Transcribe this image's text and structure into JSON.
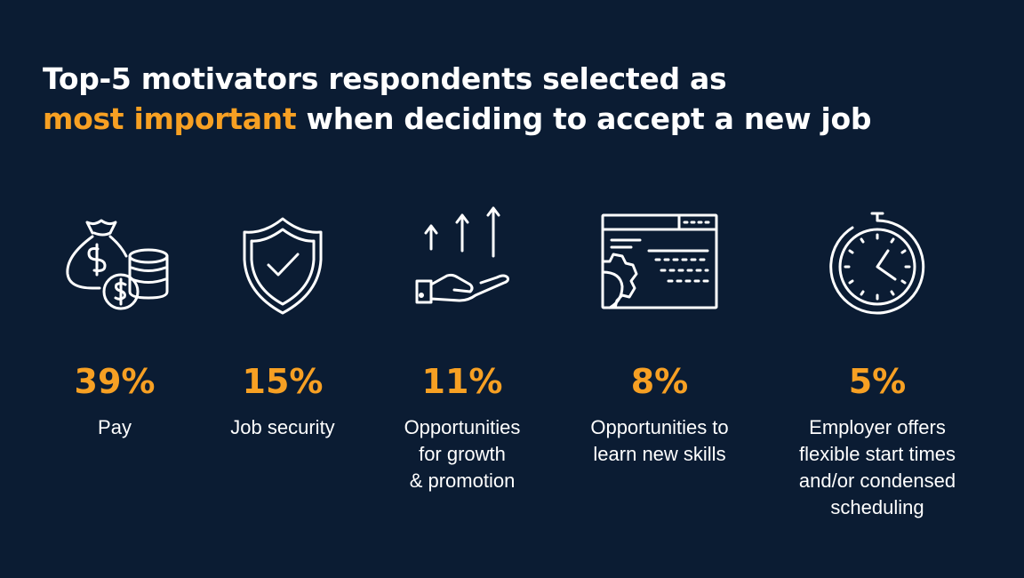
{
  "title": {
    "line1": "Top-5 motivators respondents selected as",
    "highlight": "most important",
    "line2_rest": " when deciding to accept a new job"
  },
  "colors": {
    "background": "#0b1c33",
    "accent": "#f7a023",
    "text": "#ffffff"
  },
  "items": [
    {
      "icon": "money-bag-coins-icon",
      "percent": "39%",
      "label_lines": [
        "Pay"
      ]
    },
    {
      "icon": "shield-check-icon",
      "percent": "15%",
      "label_lines": [
        "Job security"
      ]
    },
    {
      "icon": "hand-arrows-up-icon",
      "percent": "11%",
      "label_lines": [
        "Opportunities",
        "for growth",
        "& promotion"
      ]
    },
    {
      "icon": "browser-gear-icon",
      "percent": "8%",
      "label_lines": [
        "Opportunities to",
        "learn new skills"
      ]
    },
    {
      "icon": "stopwatch-icon",
      "percent": "5%",
      "label_lines": [
        "Employer offers",
        "flexible start times",
        "and/or condensed",
        "scheduling"
      ]
    }
  ],
  "chart_data": {
    "type": "table",
    "title": "Top-5 motivators respondents selected as most important when deciding to accept a new job",
    "categories": [
      "Pay",
      "Job security",
      "Opportunities for growth & promotion",
      "Opportunities to learn new skills",
      "Employer offers flexible start times and/or condensed scheduling"
    ],
    "values": [
      39,
      15,
      11,
      8,
      5
    ],
    "unit": "%"
  }
}
